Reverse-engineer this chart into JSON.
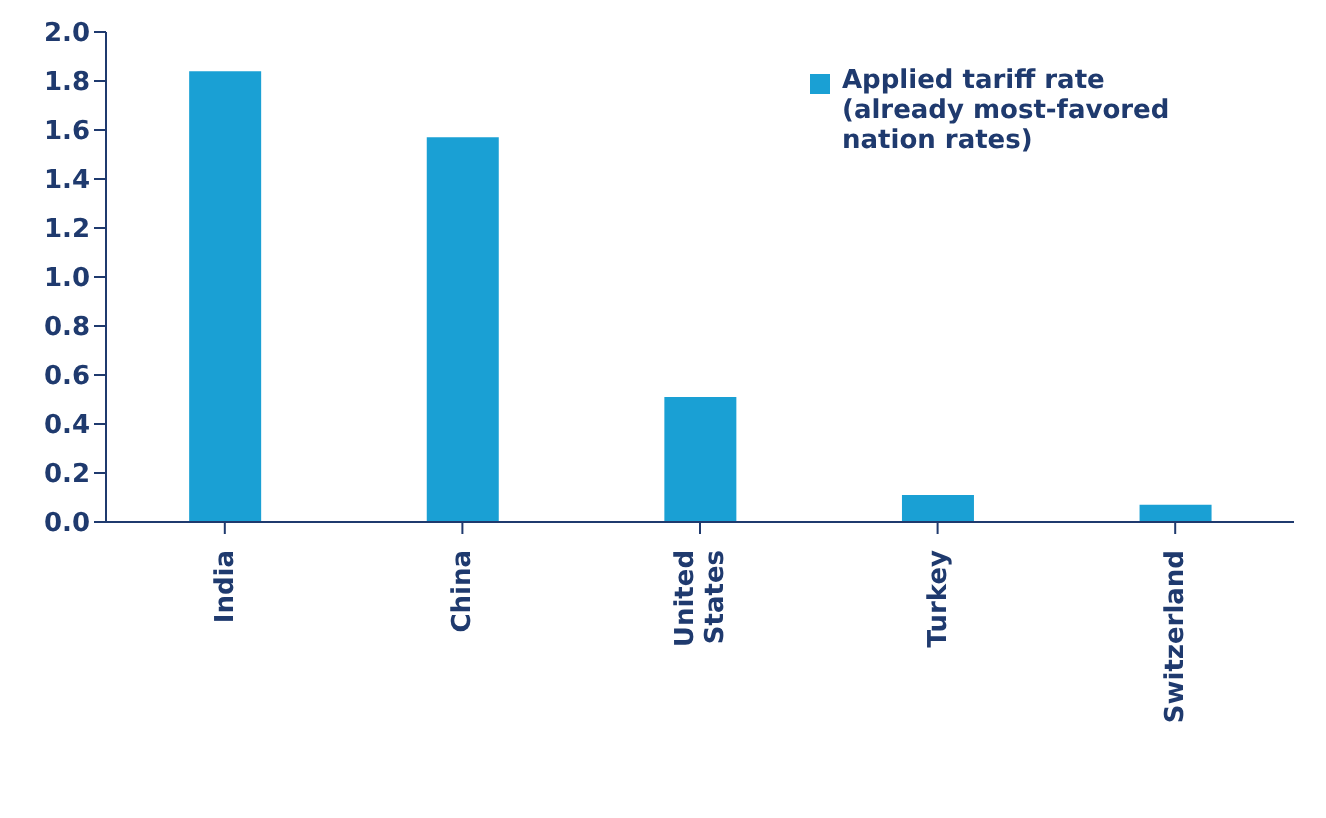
{
  "chart_data": {
    "type": "bar",
    "categories": [
      "India",
      "China",
      "United States",
      "Turkey",
      "Switzerland"
    ],
    "series": [
      {
        "name": "Applied tariff rate (already most-favored nation rates)",
        "color": "#1aa0d4",
        "values": [
          1.84,
          1.57,
          0.51,
          0.11,
          0.07
        ]
      }
    ],
    "ylim": [
      0,
      2
    ],
    "yticks": [
      {
        "value": 0,
        "label": "0.0"
      },
      0.2,
      0.4,
      0.6,
      0.8,
      {
        "value": 1,
        "label": "1.0"
      },
      1.2,
      1.4,
      1.6,
      1.8,
      {
        "value": 2,
        "label": "2.0"
      }
    ],
    "grid": false,
    "legend": "top right"
  }
}
